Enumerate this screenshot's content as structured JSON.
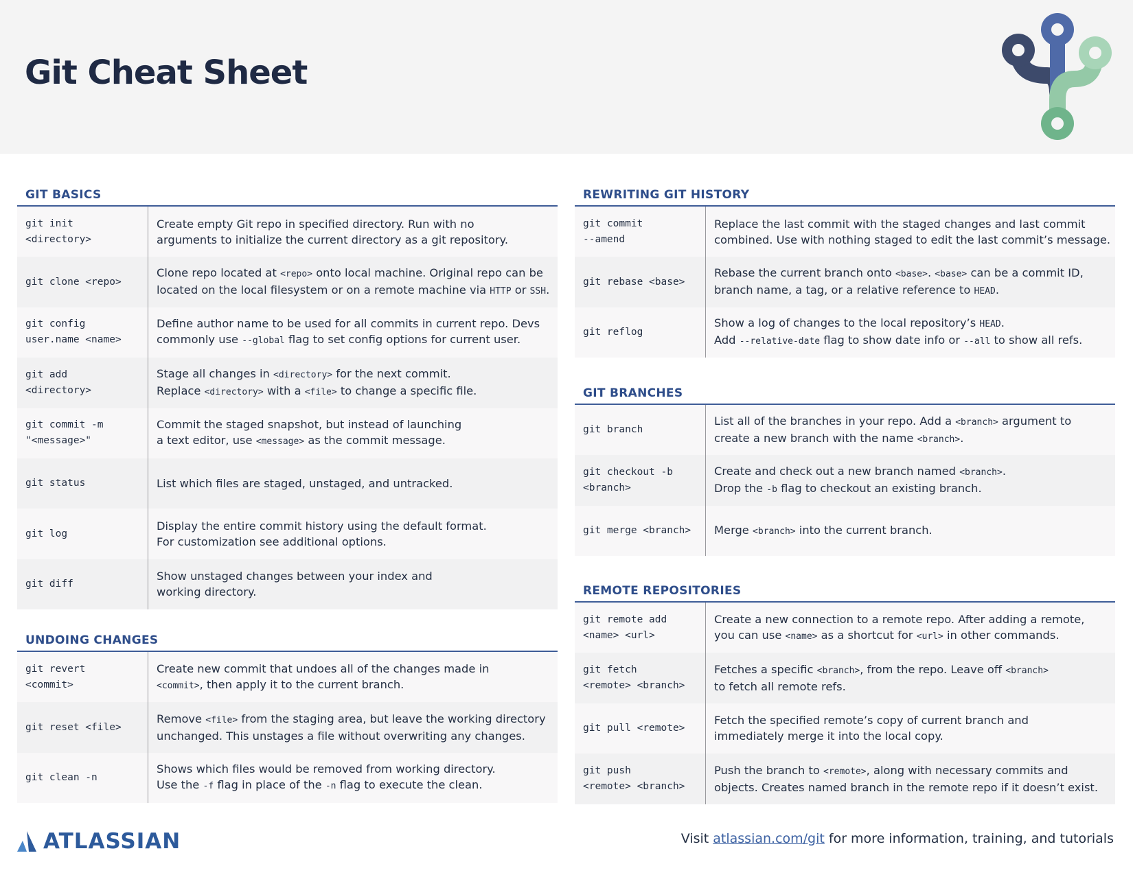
{
  "title": "Git Cheat Sheet",
  "colors": {
    "accent": "#2e4d8a",
    "row_light": "#f8f7f8",
    "row_dark": "#f1f1f2",
    "header_bg": "#f4f4f4"
  },
  "sections": [
    {
      "id": "git-basics",
      "title": "GIT BASICS",
      "rows": [
        {
          "cmd": [
            "git init",
            "<directory>"
          ],
          "desc": [
            [
              {
                "t": "Create empty Git repo in specified directory. Run with no"
              }
            ],
            [
              {
                "t": "arguments to initialize the current directory as a git repository."
              }
            ]
          ]
        },
        {
          "cmd": [
            "git clone <repo>"
          ],
          "desc": [
            [
              {
                "t": "Clone repo located at "
              },
              {
                "c": "<repo>"
              },
              {
                "t": " onto local machine. Original repo can be"
              }
            ],
            [
              {
                "t": "located on the local filesystem or on a remote machine via "
              },
              {
                "c": "HTTP"
              },
              {
                "t": " or "
              },
              {
                "c": "SSH"
              },
              {
                "t": "."
              }
            ]
          ]
        },
        {
          "cmd": [
            "git config",
            "user.name <name>"
          ],
          "desc": [
            [
              {
                "t": "Define author name to be used for all commits in current repo. Devs"
              }
            ],
            [
              {
                "t": "commonly use "
              },
              {
                "c": "--global"
              },
              {
                "t": " flag to set config options for current user."
              }
            ]
          ]
        },
        {
          "cmd": [
            "git add",
            "<directory>"
          ],
          "desc": [
            [
              {
                "t": "Stage all changes in "
              },
              {
                "c": "<directory>"
              },
              {
                "t": " for the next commit."
              }
            ],
            [
              {
                "t": "Replace "
              },
              {
                "c": "<directory>"
              },
              {
                "t": " with a "
              },
              {
                "c": "<file>"
              },
              {
                "t": " to change a specific file."
              }
            ]
          ]
        },
        {
          "cmd": [
            "git commit -m",
            "\"<message>\""
          ],
          "desc": [
            [
              {
                "t": "Commit the staged snapshot, but instead of launching"
              }
            ],
            [
              {
                "t": "a text editor, use "
              },
              {
                "c": "<message>"
              },
              {
                "t": " as the commit message."
              }
            ]
          ]
        },
        {
          "cmd": [
            "git status"
          ],
          "desc": [
            [
              {
                "t": "List which files are staged, unstaged, and untracked."
              }
            ]
          ]
        },
        {
          "cmd": [
            "git log"
          ],
          "desc": [
            [
              {
                "t": "Display the entire commit history using the default format."
              }
            ],
            [
              {
                "t": "For customization see additional options."
              }
            ]
          ]
        },
        {
          "cmd": [
            "git diff"
          ],
          "desc": [
            [
              {
                "t": "Show unstaged changes between your index and"
              }
            ],
            [
              {
                "t": "working directory."
              }
            ]
          ]
        }
      ]
    },
    {
      "id": "undoing-changes",
      "title": "UNDOING CHANGES",
      "rows": [
        {
          "cmd": [
            "git revert",
            "<commit>"
          ],
          "desc": [
            [
              {
                "t": "Create new commit that undoes all of the changes made in"
              }
            ],
            [
              {
                "c": "<commit>"
              },
              {
                "t": ", then apply it to the current branch."
              }
            ]
          ]
        },
        {
          "cmd": [
            "git reset <file>"
          ],
          "desc": [
            [
              {
                "t": "Remove "
              },
              {
                "c": "<file>"
              },
              {
                "t": " from the staging area, but leave the working directory"
              }
            ],
            [
              {
                "t": "unchanged. This unstages a file without overwriting any changes."
              }
            ]
          ]
        },
        {
          "cmd": [
            "git clean -n"
          ],
          "desc": [
            [
              {
                "t": "Shows which files would be removed from working directory."
              }
            ],
            [
              {
                "t": "Use the "
              },
              {
                "c": "-f"
              },
              {
                "t": " flag in place of the "
              },
              {
                "c": "-n"
              },
              {
                "t": " flag to execute the clean."
              }
            ]
          ]
        }
      ]
    },
    {
      "id": "rewriting-git-history",
      "title": "REWRITING GIT HISTORY",
      "rows": [
        {
          "cmd": [
            "git commit",
            "--amend"
          ],
          "desc": [
            [
              {
                "t": "Replace the last commit with the staged changes and last commit"
              }
            ],
            [
              {
                "t": "combined. Use with nothing staged to edit the last commit’s message."
              }
            ]
          ]
        },
        {
          "cmd": [
            "git rebase <base>"
          ],
          "desc": [
            [
              {
                "t": "Rebase the current branch onto "
              },
              {
                "c": "<base>"
              },
              {
                "t": ". "
              },
              {
                "c": "<base>"
              },
              {
                "t": " can be a commit ID,"
              }
            ],
            [
              {
                "t": "branch name, a tag, or a relative reference to "
              },
              {
                "c": "HEAD"
              },
              {
                "t": "."
              }
            ]
          ]
        },
        {
          "cmd": [
            "git reflog"
          ],
          "desc": [
            [
              {
                "t": "Show a log of changes to the local repository’s "
              },
              {
                "c": "HEAD"
              },
              {
                "t": "."
              }
            ],
            [
              {
                "t": "Add "
              },
              {
                "c": "--relative-date"
              },
              {
                "t": " flag to show date info or "
              },
              {
                "c": "--all"
              },
              {
                "t": " to show all refs."
              }
            ]
          ]
        }
      ]
    },
    {
      "id": "git-branches",
      "title": "GIT BRANCHES",
      "rows": [
        {
          "cmd": [
            "git branch"
          ],
          "desc": [
            [
              {
                "t": "List all of the branches in your repo. Add a "
              },
              {
                "c": "<branch>"
              },
              {
                "t": " argument to"
              }
            ],
            [
              {
                "t": "create a new branch with the name "
              },
              {
                "c": "<branch>"
              },
              {
                "t": "."
              }
            ]
          ]
        },
        {
          "cmd": [
            "git checkout -b",
            "<branch>"
          ],
          "desc": [
            [
              {
                "t": "Create and check out a new branch named "
              },
              {
                "c": "<branch>"
              },
              {
                "t": "."
              }
            ],
            [
              {
                "t": "Drop the "
              },
              {
                "c": "-b"
              },
              {
                "t": " flag to checkout an existing branch."
              }
            ]
          ]
        },
        {
          "cmd": [
            "git merge <branch>"
          ],
          "desc": [
            [
              {
                "t": "Merge "
              },
              {
                "c": "<branch>"
              },
              {
                "t": " into the current branch."
              }
            ]
          ]
        }
      ]
    },
    {
      "id": "remote-repositories",
      "title": "REMOTE REPOSITORIES",
      "rows": [
        {
          "cmd": [
            "git remote add",
            "<name> <url>"
          ],
          "desc": [
            [
              {
                "t": "Create a new connection to a remote repo. After adding a remote,"
              }
            ],
            [
              {
                "t": "you can use "
              },
              {
                "c": "<name>"
              },
              {
                "t": " as a shortcut for "
              },
              {
                "c": "<url>"
              },
              {
                "t": " in other commands."
              }
            ]
          ]
        },
        {
          "cmd": [
            "git fetch",
            "<remote> <branch>"
          ],
          "desc": [
            [
              {
                "t": "Fetches a specific "
              },
              {
                "c": "<branch>"
              },
              {
                "t": ", from the repo. Leave off "
              },
              {
                "c": "<branch>"
              }
            ],
            [
              {
                "t": "to fetch all remote refs."
              }
            ]
          ]
        },
        {
          "cmd": [
            "git pull <remote>"
          ],
          "desc": [
            [
              {
                "t": "Fetch the specified remote’s copy of current branch and"
              }
            ],
            [
              {
                "t": "immediately merge it into the local copy."
              }
            ]
          ]
        },
        {
          "cmd": [
            "git push",
            "<remote> <branch>"
          ],
          "desc": [
            [
              {
                "t": "Push the branch to "
              },
              {
                "c": "<remote>"
              },
              {
                "t": ", along with necessary commits and"
              }
            ],
            [
              {
                "t": "objects. Creates named branch in the remote repo if it doesn’t exist."
              }
            ]
          ]
        }
      ]
    }
  ],
  "footer": {
    "brand": "ATLASSIAN",
    "visit_prefix": "Visit ",
    "link_text": "atlassian.com/git",
    "visit_suffix": " for more information, training, and tutorials"
  }
}
